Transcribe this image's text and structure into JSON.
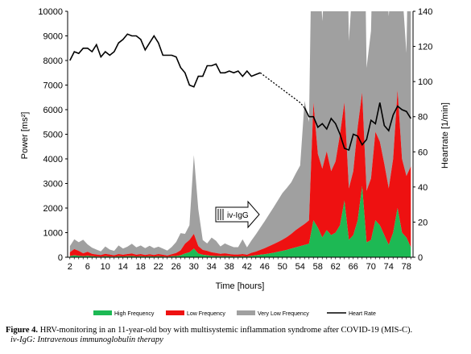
{
  "chart_data": {
    "type": "area",
    "xlabel": "Time [hours]",
    "ylabel_left": "Power [ms²]",
    "ylabel_right": "Heartrate [1/min]",
    "ylim_left": [
      0,
      10000
    ],
    "ylim_right": [
      0,
      140
    ],
    "xlim": [
      1.5,
      79.5
    ],
    "yticks_left": [
      "0",
      "1000",
      "2000",
      "3000",
      "4000",
      "5000",
      "6000",
      "7000",
      "8000",
      "9000",
      "10000"
    ],
    "yticks_right": [
      "0",
      "20",
      "40",
      "60",
      "80",
      "100",
      "120",
      "140"
    ],
    "xticks": [
      "2",
      "6",
      "10",
      "14",
      "18",
      "22",
      "26",
      "30",
      "34",
      "38",
      "42",
      "46",
      "50",
      "54",
      "58",
      "62",
      "66",
      "70",
      "74",
      "78"
    ],
    "grid": false,
    "legend_position": "bottom",
    "x": [
      2,
      3,
      4,
      5,
      6,
      7,
      8,
      9,
      10,
      11,
      12,
      13,
      14,
      15,
      16,
      17,
      18,
      19,
      20,
      21,
      22,
      23,
      24,
      25,
      26,
      27,
      28,
      29,
      30,
      31,
      32,
      33,
      34,
      35,
      36,
      37,
      38,
      39,
      40,
      41,
      42,
      43,
      44,
      45,
      46,
      47,
      48,
      49,
      50,
      51,
      52,
      53,
      54,
      55,
      56,
      57,
      58,
      59,
      60,
      61,
      62,
      63,
      64,
      65,
      66,
      67,
      68,
      69,
      70,
      71,
      72,
      73,
      74,
      75,
      76,
      77,
      78,
      79
    ],
    "series": [
      {
        "name": "High Frequency",
        "color": "#1db954",
        "values": [
          50,
          80,
          60,
          40,
          60,
          40,
          30,
          20,
          40,
          30,
          20,
          40,
          30,
          40,
          50,
          30,
          40,
          30,
          40,
          30,
          40,
          30,
          20,
          40,
          50,
          80,
          150,
          200,
          350,
          150,
          100,
          80,
          60,
          50,
          40,
          50,
          40,
          30,
          30,
          40,
          30,
          60,
          80,
          100,
          120,
          150,
          180,
          220,
          260,
          300,
          350,
          400,
          450,
          500,
          550,
          1500,
          1200,
          800,
          1100,
          900,
          1000,
          1300,
          2300,
          700,
          900,
          1500,
          2900,
          600,
          700,
          1500,
          1300,
          900,
          500,
          1000,
          2000,
          1000,
          800,
          400
        ]
      },
      {
        "name": "Low Frequency",
        "color": "#ee1111",
        "values": [
          150,
          250,
          200,
          120,
          160,
          100,
          80,
          70,
          100,
          80,
          60,
          90,
          70,
          90,
          100,
          70,
          90,
          60,
          80,
          60,
          90,
          70,
          50,
          80,
          120,
          200,
          400,
          500,
          600,
          300,
          200,
          180,
          140,
          120,
          100,
          110,
          90,
          80,
          80,
          90,
          70,
          120,
          150,
          200,
          250,
          300,
          350,
          400,
          450,
          520,
          600,
          700,
          780,
          850,
          950,
          4800,
          3000,
          2800,
          3200,
          2600,
          2900,
          3700,
          4000,
          2100,
          2600,
          3800,
          3800,
          2100,
          2500,
          3600,
          3400,
          2900,
          2300,
          3000,
          4800,
          3000,
          2500,
          3300
        ]
      },
      {
        "name": "Very Low Frequency",
        "color": "#a0a0a0",
        "values": [
          250,
          400,
          350,
          550,
          300,
          250,
          200,
          150,
          300,
          200,
          180,
          350,
          250,
          300,
          400,
          300,
          350,
          280,
          350,
          280,
          300,
          250,
          200,
          300,
          450,
          700,
          400,
          600,
          3200,
          1500,
          400,
          300,
          600,
          500,
          300,
          400,
          350,
          300,
          300,
          600,
          300,
          500,
          700,
          900,
          1100,
          1300,
          1500,
          1700,
          1900,
          2000,
          2100,
          2300,
          2500,
          5000,
          4000,
          11000,
          9000,
          6000,
          8000,
          7000,
          8000,
          12000,
          14000,
          6000,
          8000,
          12000,
          14000,
          5000,
          6000,
          12000,
          10000,
          9000,
          7000,
          8000,
          14000,
          7000,
          5000,
          15000
        ]
      },
      {
        "name": "Heart Rate",
        "color": "#000000",
        "hr_measured_x": [
          2,
          3,
          4,
          5,
          6,
          7,
          8,
          9,
          10,
          11,
          12,
          13,
          14,
          15,
          16,
          17,
          18,
          19,
          20,
          21,
          22,
          23,
          24,
          25,
          26,
          27,
          28,
          29,
          30,
          31,
          32,
          33,
          34,
          35,
          36,
          37,
          38,
          39,
          40,
          41,
          42,
          43,
          44,
          45
        ],
        "hr_measured": [
          112,
          117,
          116,
          119,
          119,
          117,
          121,
          114,
          117,
          115,
          117,
          122,
          124,
          127,
          126,
          126,
          124,
          118,
          122,
          126,
          122,
          115,
          115,
          115,
          114,
          108,
          105,
          98,
          97,
          103,
          103,
          109,
          109,
          110,
          105,
          105,
          106,
          105,
          106,
          103,
          106,
          103,
          104,
          105
        ],
        "hr_gap_x": [
          45,
          54,
          55
        ],
        "hr_gap": [
          105,
          88,
          85
        ],
        "hr_after_x": [
          55,
          56,
          57,
          58,
          59,
          60,
          61,
          62,
          63,
          64,
          65,
          66,
          67,
          68,
          69,
          70,
          71,
          72,
          73,
          74,
          75,
          76,
          77,
          78,
          79
        ],
        "hr_after": [
          85,
          80,
          80,
          74,
          76,
          73,
          79,
          76,
          70,
          62,
          61,
          70,
          69,
          64,
          67,
          78,
          76,
          88,
          75,
          72,
          81,
          86,
          84,
          83,
          79
        ]
      }
    ],
    "annotation": "iv-IgG"
  },
  "legend": {
    "hf": "High Frequency",
    "lf": "Low Frequency",
    "vlf": "Very Low Frequency",
    "hr": "Heart Rate"
  },
  "caption": {
    "prefix": "Figure 4.",
    "text": " HRV-monitoring in an 11-year-old boy with multisystemic inflammation syndrome after COVID-19 (MIS-C).",
    "note": "iv-IgG: Intravenous immunoglobulin therapy"
  }
}
